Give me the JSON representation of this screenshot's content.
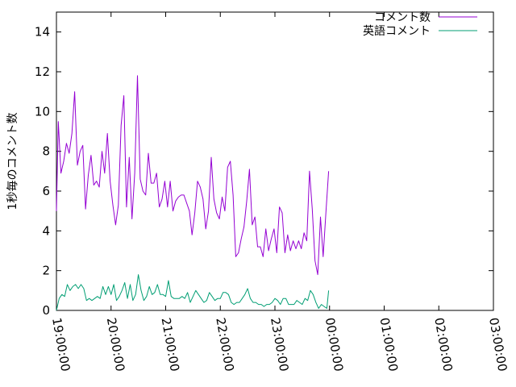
{
  "chart_data": {
    "type": "line",
    "title": "",
    "xlabel": "",
    "ylabel": "1秒毎のコメント数",
    "grid": false,
    "legend_position": "top-right",
    "xlim": [
      "19:00:00",
      "03:00:00"
    ],
    "ylim": [
      0,
      15
    ],
    "x_ticks": [
      "19:00:00",
      "20:00:00",
      "21:00:00",
      "22:00:00",
      "23:00:00",
      "00:00:00",
      "01:00:00",
      "02:00:00",
      "03:00:00"
    ],
    "y_ticks": [
      0,
      2,
      4,
      6,
      8,
      10,
      12,
      14
    ],
    "series": [
      {
        "name": "コメント数",
        "color": "#9400d3",
        "points": [
          [
            "19:00:00",
            5.0
          ],
          [
            "19:02:00",
            9.5
          ],
          [
            "19:05:00",
            6.9
          ],
          [
            "19:08:00",
            7.5
          ],
          [
            "19:11:00",
            8.4
          ],
          [
            "19:14:00",
            7.9
          ],
          [
            "19:17:00",
            8.9
          ],
          [
            "19:20:00",
            11.0
          ],
          [
            "19:23:00",
            7.3
          ],
          [
            "19:26:00",
            8.0
          ],
          [
            "19:29:00",
            8.3
          ],
          [
            "19:32:00",
            5.1
          ],
          [
            "19:35:00",
            6.8
          ],
          [
            "19:38:00",
            7.8
          ],
          [
            "19:41:00",
            6.3
          ],
          [
            "19:44:00",
            6.5
          ],
          [
            "19:47:00",
            6.2
          ],
          [
            "19:50:00",
            8.0
          ],
          [
            "19:53:00",
            6.9
          ],
          [
            "19:56:00",
            8.9
          ],
          [
            "19:59:00",
            6.5
          ],
          [
            "20:02:00",
            5.3
          ],
          [
            "20:05:00",
            4.3
          ],
          [
            "20:08:00",
            5.3
          ],
          [
            "20:11:00",
            9.3
          ],
          [
            "20:14:00",
            10.8
          ],
          [
            "20:17:00",
            5.2
          ],
          [
            "20:20:00",
            7.7
          ],
          [
            "20:23:00",
            4.6
          ],
          [
            "20:26:00",
            6.9
          ],
          [
            "20:29:00",
            11.8
          ],
          [
            "20:32:00",
            6.6
          ],
          [
            "20:35:00",
            6.0
          ],
          [
            "20:38:00",
            5.8
          ],
          [
            "20:41:00",
            7.9
          ],
          [
            "20:44:00",
            6.4
          ],
          [
            "20:47:00",
            6.4
          ],
          [
            "20:50:00",
            6.9
          ],
          [
            "20:53:00",
            5.2
          ],
          [
            "20:56:00",
            5.6
          ],
          [
            "20:59:00",
            6.5
          ],
          [
            "21:02:00",
            5.2
          ],
          [
            "21:05:00",
            6.5
          ],
          [
            "21:08:00",
            5.0
          ],
          [
            "21:11:00",
            5.5
          ],
          [
            "21:14:00",
            5.7
          ],
          [
            "21:17:00",
            5.8
          ],
          [
            "21:20:00",
            5.8
          ],
          [
            "21:23:00",
            5.4
          ],
          [
            "21:26:00",
            5.0
          ],
          [
            "21:29:00",
            3.8
          ],
          [
            "21:32:00",
            4.9
          ],
          [
            "21:35:00",
            6.5
          ],
          [
            "21:38:00",
            6.2
          ],
          [
            "21:41:00",
            5.6
          ],
          [
            "21:44:00",
            4.1
          ],
          [
            "21:47:00",
            5.0
          ],
          [
            "21:50:00",
            7.7
          ],
          [
            "21:53:00",
            5.6
          ],
          [
            "21:56:00",
            4.9
          ],
          [
            "21:59:00",
            4.6
          ],
          [
            "22:02:00",
            5.7
          ],
          [
            "22:05:00",
            5.0
          ],
          [
            "22:08:00",
            7.2
          ],
          [
            "22:11:00",
            7.5
          ],
          [
            "22:14:00",
            5.8
          ],
          [
            "22:17:00",
            2.7
          ],
          [
            "22:20:00",
            2.9
          ],
          [
            "22:23:00",
            3.6
          ],
          [
            "22:26:00",
            4.2
          ],
          [
            "22:29:00",
            5.5
          ],
          [
            "22:32:00",
            7.1
          ],
          [
            "22:35:00",
            4.3
          ],
          [
            "22:38:00",
            4.7
          ],
          [
            "22:41:00",
            3.2
          ],
          [
            "22:44:00",
            3.2
          ],
          [
            "22:47:00",
            2.7
          ],
          [
            "22:50:00",
            4.1
          ],
          [
            "22:53:00",
            3.0
          ],
          [
            "22:56:00",
            3.6
          ],
          [
            "22:59:00",
            4.1
          ],
          [
            "23:02:00",
            2.9
          ],
          [
            "23:05:00",
            5.2
          ],
          [
            "23:08:00",
            4.9
          ],
          [
            "23:11:00",
            2.9
          ],
          [
            "23:14:00",
            3.8
          ],
          [
            "23:17:00",
            3.0
          ],
          [
            "23:20:00",
            3.5
          ],
          [
            "23:23:00",
            3.1
          ],
          [
            "23:26:00",
            3.5
          ],
          [
            "23:29:00",
            3.1
          ],
          [
            "23:32:00",
            3.9
          ],
          [
            "23:35:00",
            3.5
          ],
          [
            "23:38:00",
            7.0
          ],
          [
            "23:41:00",
            5.1
          ],
          [
            "23:44:00",
            2.5
          ],
          [
            "23:47:00",
            1.8
          ],
          [
            "23:50:00",
            4.7
          ],
          [
            "23:53:00",
            2.7
          ],
          [
            "23:56:00",
            4.9
          ],
          [
            "23:59:00",
            7.0
          ]
        ]
      },
      {
        "name": "英語コメント",
        "color": "#009e73",
        "points": [
          [
            "19:00:00",
            0.0
          ],
          [
            "19:03:00",
            0.6
          ],
          [
            "19:06:00",
            0.8
          ],
          [
            "19:09:00",
            0.7
          ],
          [
            "19:12:00",
            1.3
          ],
          [
            "19:15:00",
            1.0
          ],
          [
            "19:18:00",
            1.2
          ],
          [
            "19:21:00",
            1.3
          ],
          [
            "19:24:00",
            1.1
          ],
          [
            "19:27:00",
            1.3
          ],
          [
            "19:30:00",
            1.1
          ],
          [
            "19:33:00",
            0.5
          ],
          [
            "19:36:00",
            0.6
          ],
          [
            "19:39:00",
            0.5
          ],
          [
            "19:42:00",
            0.6
          ],
          [
            "19:45:00",
            0.7
          ],
          [
            "19:48:00",
            0.6
          ],
          [
            "19:51:00",
            1.2
          ],
          [
            "19:54:00",
            0.8
          ],
          [
            "19:57:00",
            1.2
          ],
          [
            "20:00:00",
            0.8
          ],
          [
            "20:03:00",
            1.3
          ],
          [
            "20:06:00",
            0.5
          ],
          [
            "20:09:00",
            0.7
          ],
          [
            "20:12:00",
            1.0
          ],
          [
            "20:15:00",
            1.4
          ],
          [
            "20:18:00",
            0.6
          ],
          [
            "20:21:00",
            1.3
          ],
          [
            "20:24:00",
            0.5
          ],
          [
            "20:27:00",
            0.8
          ],
          [
            "20:30:00",
            1.8
          ],
          [
            "20:33:00",
            1.0
          ],
          [
            "20:36:00",
            0.5
          ],
          [
            "20:39:00",
            0.7
          ],
          [
            "20:42:00",
            1.2
          ],
          [
            "20:45:00",
            0.8
          ],
          [
            "20:48:00",
            0.9
          ],
          [
            "20:51:00",
            1.3
          ],
          [
            "20:54:00",
            0.8
          ],
          [
            "20:57:00",
            0.8
          ],
          [
            "21:00:00",
            0.7
          ],
          [
            "21:03:00",
            1.5
          ],
          [
            "21:06:00",
            0.7
          ],
          [
            "21:09:00",
            0.6
          ],
          [
            "21:12:00",
            0.6
          ],
          [
            "21:15:00",
            0.6
          ],
          [
            "21:18:00",
            0.7
          ],
          [
            "21:21:00",
            0.6
          ],
          [
            "21:24:00",
            0.9
          ],
          [
            "21:27:00",
            0.4
          ],
          [
            "21:30:00",
            0.7
          ],
          [
            "21:33:00",
            1.0
          ],
          [
            "21:36:00",
            0.8
          ],
          [
            "21:39:00",
            0.6
          ],
          [
            "21:42:00",
            0.4
          ],
          [
            "21:45:00",
            0.5
          ],
          [
            "21:48:00",
            0.9
          ],
          [
            "21:51:00",
            0.7
          ],
          [
            "21:54:00",
            0.5
          ],
          [
            "21:57:00",
            0.6
          ],
          [
            "22:00:00",
            0.6
          ],
          [
            "22:03:00",
            0.9
          ],
          [
            "22:06:00",
            0.9
          ],
          [
            "22:09:00",
            0.8
          ],
          [
            "22:12:00",
            0.4
          ],
          [
            "22:15:00",
            0.3
          ],
          [
            "22:18:00",
            0.4
          ],
          [
            "22:21:00",
            0.4
          ],
          [
            "22:24:00",
            0.6
          ],
          [
            "22:27:00",
            0.8
          ],
          [
            "22:30:00",
            1.1
          ],
          [
            "22:33:00",
            0.6
          ],
          [
            "22:36:00",
            0.4
          ],
          [
            "22:39:00",
            0.4
          ],
          [
            "22:42:00",
            0.3
          ],
          [
            "22:45:00",
            0.3
          ],
          [
            "22:48:00",
            0.2
          ],
          [
            "22:51:00",
            0.3
          ],
          [
            "22:54:00",
            0.3
          ],
          [
            "22:57:00",
            0.4
          ],
          [
            "23:00:00",
            0.6
          ],
          [
            "23:03:00",
            0.5
          ],
          [
            "23:06:00",
            0.3
          ],
          [
            "23:09:00",
            0.6
          ],
          [
            "23:12:00",
            0.6
          ],
          [
            "23:15:00",
            0.3
          ],
          [
            "23:18:00",
            0.3
          ],
          [
            "23:21:00",
            0.3
          ],
          [
            "23:24:00",
            0.5
          ],
          [
            "23:27:00",
            0.4
          ],
          [
            "23:30:00",
            0.3
          ],
          [
            "23:33:00",
            0.6
          ],
          [
            "23:36:00",
            0.5
          ],
          [
            "23:39:00",
            1.0
          ],
          [
            "23:42:00",
            0.8
          ],
          [
            "23:45:00",
            0.4
          ],
          [
            "23:48:00",
            0.1
          ],
          [
            "23:51:00",
            0.3
          ],
          [
            "23:54:00",
            0.2
          ],
          [
            "23:57:00",
            0.1
          ],
          [
            "23:59:00",
            1.0
          ]
        ]
      }
    ]
  }
}
